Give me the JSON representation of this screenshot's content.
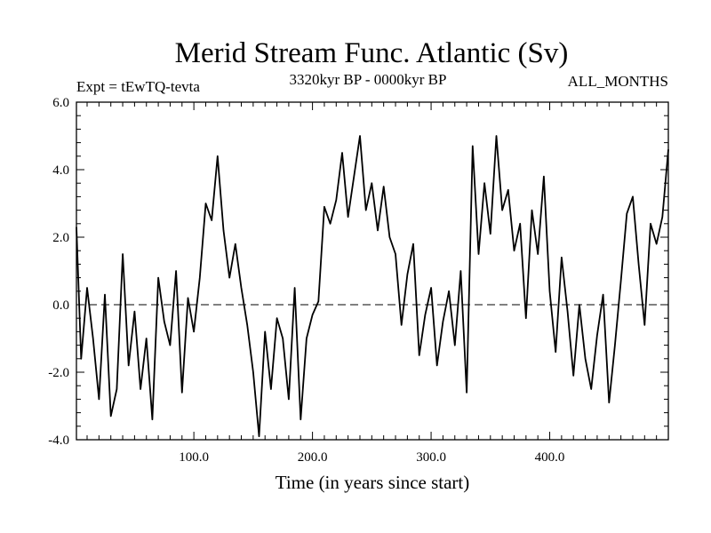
{
  "chart_data": {
    "type": "line",
    "title": "Merid Stream Func. Atlantic (Sv)",
    "left_note": "Expt = tEwTQ-tevta",
    "center_note": "3320kyr BP - 0000kyr BP",
    "right_note": "ALL_MONTHS",
    "xlabel": "Time (in years since start)",
    "ylabel": "",
    "xlim": [
      1,
      500
    ],
    "ylim": [
      -4.0,
      6.0
    ],
    "xticks": [
      100,
      200,
      300,
      400
    ],
    "xtick_labels": [
      "100.0",
      "200.0",
      "300.0",
      "400.0"
    ],
    "yticks": [
      -4,
      -2,
      0,
      2,
      4,
      6
    ],
    "ytick_labels": [
      "-4.0",
      "-2.0",
      "0.0",
      "2.0",
      "4.0",
      "6.0"
    ],
    "reference_line": 0.0,
    "series": [
      {
        "name": "Merid Stream Func. Atlantic",
        "x": [
          1,
          5,
          10,
          15,
          20,
          25,
          30,
          35,
          40,
          45,
          50,
          55,
          60,
          65,
          70,
          75,
          80,
          85,
          90,
          95,
          100,
          105,
          110,
          115,
          120,
          125,
          130,
          135,
          140,
          145,
          150,
          155,
          160,
          165,
          170,
          175,
          180,
          185,
          190,
          195,
          200,
          205,
          210,
          215,
          220,
          225,
          230,
          235,
          240,
          245,
          250,
          255,
          260,
          265,
          270,
          275,
          280,
          285,
          290,
          295,
          300,
          305,
          310,
          315,
          320,
          325,
          330,
          335,
          340,
          345,
          350,
          355,
          360,
          365,
          370,
          375,
          380,
          385,
          390,
          395,
          400,
          405,
          410,
          415,
          420,
          425,
          430,
          435,
          440,
          445,
          450,
          455,
          460,
          465,
          470,
          475,
          480,
          485,
          490,
          495,
          500
        ],
        "values": [
          2.3,
          -1.6,
          0.5,
          -1.0,
          -2.8,
          0.3,
          -3.3,
          -2.5,
          1.5,
          -1.8,
          -0.2,
          -2.5,
          -1.0,
          -3.4,
          0.8,
          -0.5,
          -1.2,
          1.0,
          -2.6,
          0.2,
          -0.8,
          0.8,
          3.0,
          2.5,
          4.4,
          2.2,
          0.8,
          1.8,
          0.5,
          -0.6,
          -2.0,
          -3.9,
          -0.8,
          -2.5,
          -0.4,
          -1.0,
          -2.8,
          0.5,
          -3.4,
          -1.0,
          -0.3,
          0.1,
          2.9,
          2.4,
          3.1,
          4.5,
          2.6,
          3.8,
          5.0,
          2.8,
          3.6,
          2.2,
          3.5,
          2.0,
          1.5,
          -0.6,
          0.9,
          1.8,
          -1.5,
          -0.3,
          0.5,
          -1.8,
          -0.5,
          0.4,
          -1.2,
          1.0,
          -2.6,
          4.7,
          1.5,
          3.6,
          2.1,
          5.0,
          2.8,
          3.4,
          1.6,
          2.4,
          -0.4,
          2.8,
          1.5,
          3.8,
          0.4,
          -1.4,
          1.4,
          -0.2,
          -2.1,
          0.0,
          -1.6,
          -2.5,
          -0.9,
          0.3,
          -2.9,
          -1.2,
          0.7,
          2.7,
          3.2,
          1.2,
          -0.6,
          2.4,
          1.8,
          2.6,
          4.6
        ]
      }
    ]
  }
}
